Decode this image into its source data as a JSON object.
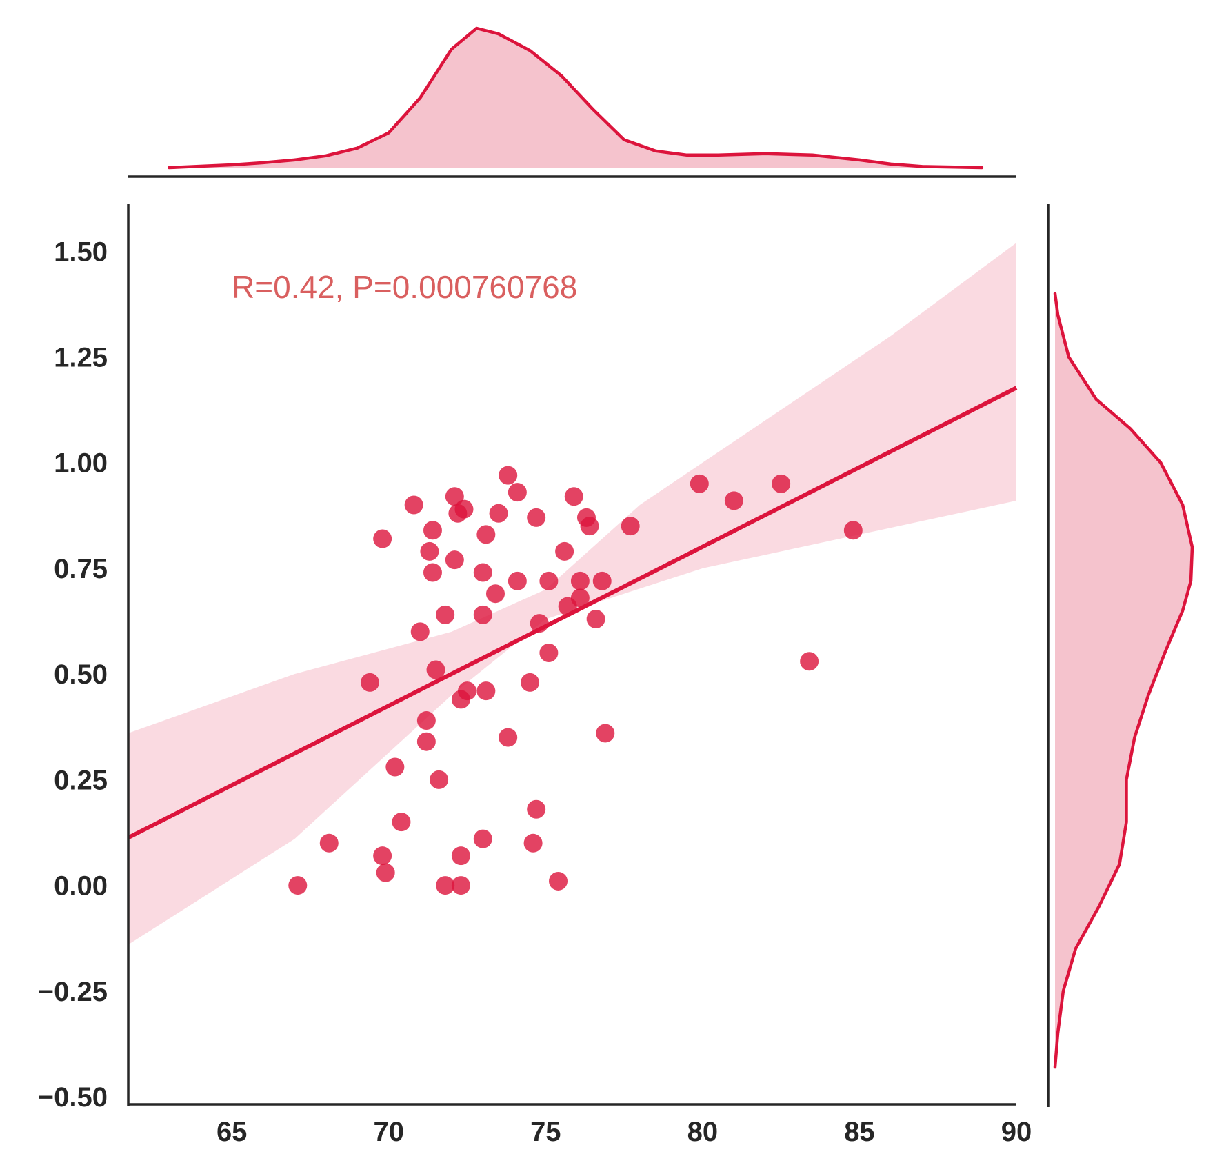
{
  "chart_data": {
    "type": "scatter",
    "title": "",
    "xlabel": "",
    "ylabel": "",
    "xlim": [
      61.7,
      90.0
    ],
    "ylim": [
      -0.5,
      1.6
    ],
    "xticks": [
      65,
      70,
      75,
      80,
      85,
      90
    ],
    "yticks": [
      -0.5,
      -0.25,
      0.0,
      0.25,
      0.5,
      0.75,
      1.0,
      1.25,
      1.5
    ],
    "xtick_labels": [
      "65",
      "70",
      "75",
      "80",
      "85",
      "90"
    ],
    "ytick_labels": [
      "−0.50",
      "−0.25",
      "0.00",
      "0.25",
      "0.50",
      "0.75",
      "1.00",
      "1.25",
      "1.50"
    ],
    "grid": false,
    "annotation": "R=0.42, P=0.000760768",
    "regression": {
      "slope": 0.0376,
      "intercept": -2.207,
      "ci_lower": [
        [
          61.7,
          -0.14
        ],
        [
          67,
          0.11
        ],
        [
          72,
          0.45
        ],
        [
          75,
          0.63
        ],
        [
          80,
          0.75
        ],
        [
          85,
          0.83
        ],
        [
          90,
          0.91
        ]
      ],
      "ci_upper": [
        [
          61.7,
          0.36
        ],
        [
          67,
          0.5
        ],
        [
          72,
          0.6
        ],
        [
          75,
          0.7
        ],
        [
          78,
          0.9
        ],
        [
          82,
          1.1
        ],
        [
          86,
          1.3
        ],
        [
          90,
          1.52
        ]
      ]
    },
    "points": [
      [
        67.1,
        0.0
      ],
      [
        68.1,
        0.1
      ],
      [
        69.4,
        0.48
      ],
      [
        69.8,
        0.07
      ],
      [
        69.8,
        0.82
      ],
      [
        69.9,
        0.03
      ],
      [
        70.2,
        0.28
      ],
      [
        70.4,
        0.15
      ],
      [
        70.8,
        0.9
      ],
      [
        71.0,
        0.6
      ],
      [
        71.2,
        0.39
      ],
      [
        71.2,
        0.34
      ],
      [
        71.3,
        0.79
      ],
      [
        71.4,
        0.84
      ],
      [
        71.4,
        0.74
      ],
      [
        71.5,
        0.51
      ],
      [
        71.6,
        0.25
      ],
      [
        71.8,
        0.0
      ],
      [
        71.8,
        0.64
      ],
      [
        72.1,
        0.77
      ],
      [
        72.1,
        0.92
      ],
      [
        72.2,
        0.88
      ],
      [
        72.3,
        0.07
      ],
      [
        72.3,
        0.0
      ],
      [
        72.3,
        0.44
      ],
      [
        72.4,
        0.89
      ],
      [
        72.5,
        0.46
      ],
      [
        73.0,
        0.11
      ],
      [
        73.0,
        0.64
      ],
      [
        73.0,
        0.74
      ],
      [
        73.1,
        0.46
      ],
      [
        73.1,
        0.83
      ],
      [
        73.4,
        0.69
      ],
      [
        73.5,
        0.88
      ],
      [
        73.8,
        0.97
      ],
      [
        73.8,
        0.35
      ],
      [
        74.1,
        0.72
      ],
      [
        74.1,
        0.93
      ],
      [
        74.5,
        0.48
      ],
      [
        74.6,
        0.1
      ],
      [
        74.7,
        0.87
      ],
      [
        74.7,
        0.18
      ],
      [
        74.8,
        0.62
      ],
      [
        75.1,
        0.55
      ],
      [
        75.1,
        0.72
      ],
      [
        75.4,
        0.01
      ],
      [
        75.6,
        0.79
      ],
      [
        75.7,
        0.66
      ],
      [
        75.9,
        0.92
      ],
      [
        76.1,
        0.68
      ],
      [
        76.1,
        0.72
      ],
      [
        76.3,
        0.87
      ],
      [
        76.4,
        0.85
      ],
      [
        76.6,
        0.63
      ],
      [
        76.8,
        0.72
      ],
      [
        76.9,
        0.36
      ],
      [
        77.7,
        0.85
      ],
      [
        79.9,
        0.95
      ],
      [
        81.0,
        0.91
      ],
      [
        82.5,
        0.95
      ],
      [
        83.4,
        0.53
      ],
      [
        84.8,
        0.84
      ]
    ],
    "marginal_x_kde": [
      [
        63.0,
        0.0
      ],
      [
        64.0,
        0.01
      ],
      [
        65.0,
        0.02
      ],
      [
        66.0,
        0.035
      ],
      [
        67.0,
        0.055
      ],
      [
        68.0,
        0.085
      ],
      [
        69.0,
        0.14
      ],
      [
        70.0,
        0.25
      ],
      [
        71.0,
        0.5
      ],
      [
        72.0,
        0.85
      ],
      [
        72.8,
        1.0
      ],
      [
        73.5,
        0.96
      ],
      [
        74.5,
        0.84
      ],
      [
        75.5,
        0.66
      ],
      [
        76.5,
        0.42
      ],
      [
        77.5,
        0.2
      ],
      [
        78.5,
        0.12
      ],
      [
        79.5,
        0.09
      ],
      [
        80.5,
        0.09
      ],
      [
        82.0,
        0.1
      ],
      [
        83.5,
        0.09
      ],
      [
        85.0,
        0.055
      ],
      [
        86.0,
        0.025
      ],
      [
        87.0,
        0.008
      ],
      [
        88.9,
        0.0
      ]
    ],
    "marginal_y_kde": [
      [
        -0.43,
        0.0
      ],
      [
        -0.35,
        0.02
      ],
      [
        -0.25,
        0.06
      ],
      [
        -0.15,
        0.15
      ],
      [
        -0.05,
        0.32
      ],
      [
        0.05,
        0.47
      ],
      [
        0.15,
        0.52
      ],
      [
        0.25,
        0.52
      ],
      [
        0.35,
        0.58
      ],
      [
        0.45,
        0.68
      ],
      [
        0.55,
        0.8
      ],
      [
        0.65,
        0.93
      ],
      [
        0.72,
        0.99
      ],
      [
        0.8,
        1.0
      ],
      [
        0.9,
        0.93
      ],
      [
        1.0,
        0.77
      ],
      [
        1.08,
        0.55
      ],
      [
        1.15,
        0.3
      ],
      [
        1.25,
        0.1
      ],
      [
        1.35,
        0.02
      ],
      [
        1.4,
        0.0
      ]
    ],
    "colors": {
      "point": "#dc143c",
      "line": "#dc143c",
      "band": "#f9d4dc",
      "kde_fill": "#f5c3cd",
      "kde_line": "#dc143c",
      "annotation": "#d95f5f",
      "axis": "#262626"
    }
  }
}
